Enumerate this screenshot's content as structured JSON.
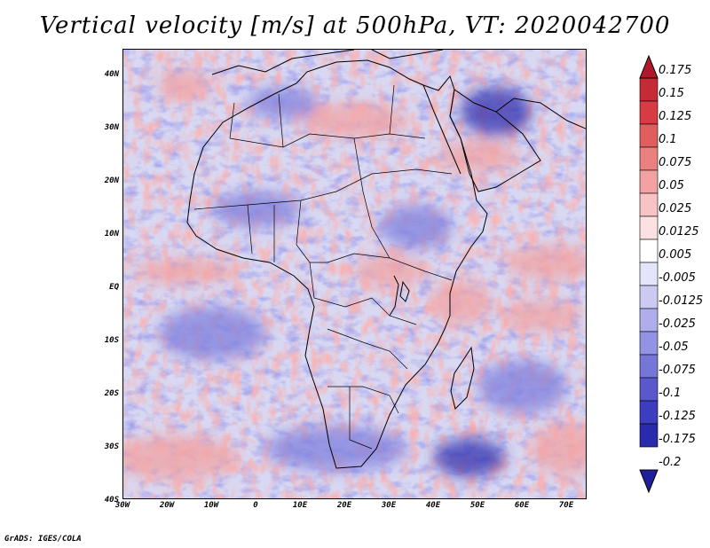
{
  "title": "Vertical velocity [m/s] at 500hPa, VT: 2020042700",
  "credit": "GrADS: IGES/COLA",
  "axes": {
    "lat_labels": [
      "40N",
      "30N",
      "20N",
      "10N",
      "EQ",
      "10S",
      "20S",
      "30S",
      "40S"
    ],
    "lon_labels": [
      "30W",
      "20W",
      "10W",
      "0",
      "10E",
      "20E",
      "30E",
      "40E",
      "50E",
      "60E",
      "70E"
    ]
  },
  "colorbar": {
    "labels": [
      "0.175",
      "0.15",
      "0.125",
      "0.1",
      "0.075",
      "0.05",
      "0.025",
      "0.0125",
      "0.005",
      "-0.005",
      "-0.0125",
      "-0.025",
      "-0.05",
      "-0.075",
      "-0.1",
      "-0.125",
      "-0.175",
      "-0.2"
    ],
    "colors": [
      "#b2182b",
      "#c62a35",
      "#d73c44",
      "#e15e5e",
      "#ea8080",
      "#f3a2a2",
      "#f8c3c3",
      "#fce1e1",
      "#ffffff",
      "#e4e4fa",
      "#cacaf3",
      "#aeaeec",
      "#9393e3",
      "#7676d8",
      "#5959cc",
      "#3d3dbf",
      "#2a2aad",
      "#1f1f99"
    ]
  },
  "map": {
    "background": "#d8d8f2",
    "positive_color": "#f2a3a3",
    "negative_color": "#8080de",
    "strong_negative_color": "#3030b0",
    "strong_positive_color": "#c82d36"
  }
}
